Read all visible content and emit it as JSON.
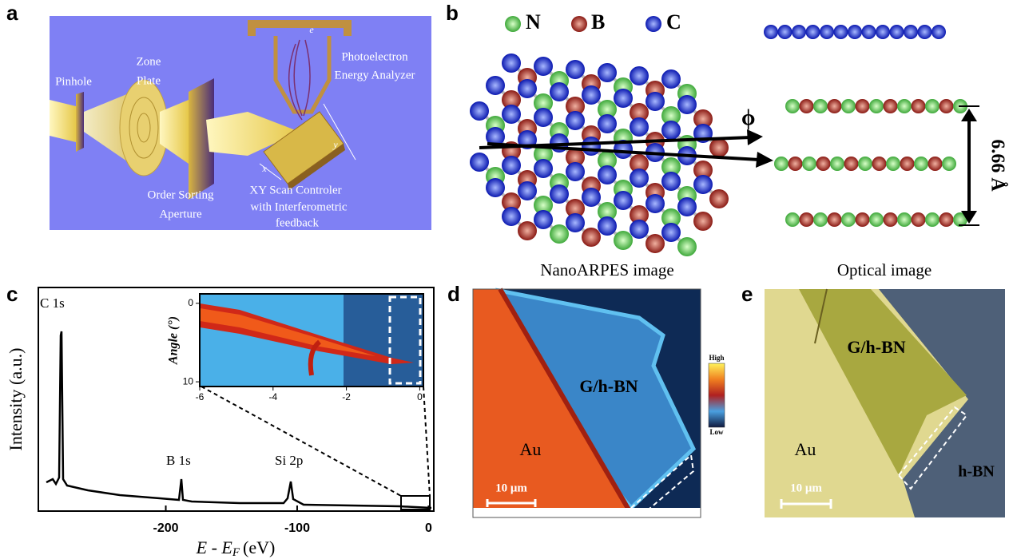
{
  "panels": {
    "a": {
      "label": "a",
      "texts": [
        "Pinhole",
        "Zone",
        "Plate",
        "Photoelectron",
        "Energy Analyzer",
        "Order Sorting",
        "Aperture",
        "XY Scan Controler",
        "with Interferometric",
        "feedback",
        "x",
        "y",
        "e"
      ]
    },
    "b": {
      "label": "b",
      "legend": [
        "N",
        "B",
        "C"
      ],
      "angle_symbol": "ϕ",
      "spacing": "6.66 Å"
    },
    "c": {
      "label": "c",
      "ylabel": "Intensity (a.u.)",
      "xlabel": {
        "main": "E - E",
        "sub": "F",
        "unit": "(eV)"
      },
      "xlim": [
        -297,
        4
      ],
      "xticks": [
        -200,
        -100,
        0
      ],
      "peaks": [
        "C 1s",
        "B 1s",
        "Si 2p"
      ],
      "inset": {
        "ylabel": "Angle (°)",
        "xlim": [
          -6,
          0.1
        ],
        "xticks": [
          -6,
          -4,
          -2,
          0
        ],
        "ylim": [
          -1.2,
          10.6
        ],
        "yticks": [
          0,
          10
        ]
      }
    },
    "d": {
      "label": "d",
      "title": "NanoARPES image",
      "region": "G/h-BN",
      "substrate": "Au",
      "scale_bar": "10 μm",
      "colorbar": [
        "High",
        "Low"
      ]
    },
    "e": {
      "label": "e",
      "title": "Optical image",
      "region": "G/h-BN",
      "substrate": "Au",
      "other": "h-BN",
      "scale_bar": "10 μm"
    }
  }
}
